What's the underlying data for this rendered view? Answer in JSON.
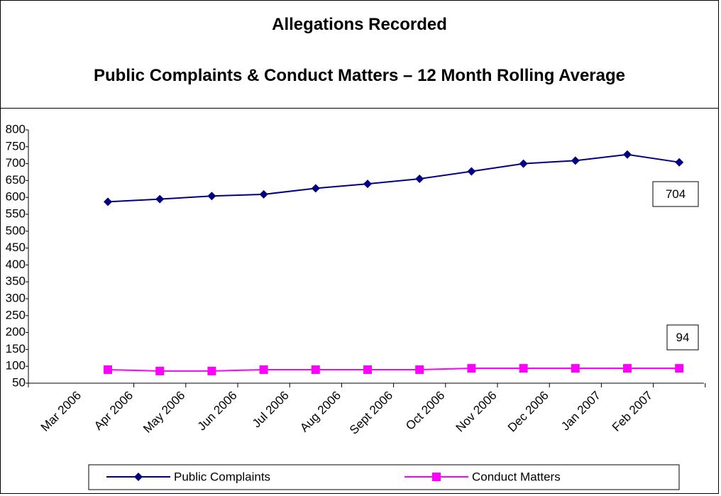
{
  "chart_data": {
    "type": "line",
    "title": "Allegations Recorded",
    "subtitle": "Public Complaints & Conduct Matters – 12 Month Rolling Average",
    "categories": [
      "Mar 2006",
      "Apr 2006",
      "May 2006",
      "Jun 2006",
      "Jul 2006",
      "Aug 2006",
      "Sept 2006",
      "Oct 2006",
      "Nov 2006",
      "Dec 2006",
      "Jan 2007",
      "Feb 2007"
    ],
    "series": [
      {
        "name": "Public Complaints",
        "color": "#000080",
        "marker": "diamond",
        "values": [
          587,
          595,
          604,
          609,
          627,
          640,
          655,
          677,
          700,
          709,
          727,
          704
        ]
      },
      {
        "name": "Conduct Matters",
        "color": "#ff00ff",
        "marker": "square",
        "values": [
          90,
          86,
          86,
          90,
          90,
          90,
          90,
          94,
          94,
          94,
          94,
          94
        ]
      }
    ],
    "ylim": [
      50,
      800
    ],
    "yticks": [
      50,
      100,
      150,
      200,
      250,
      300,
      350,
      400,
      450,
      500,
      550,
      600,
      650,
      700,
      750,
      800
    ],
    "legend": "bottom"
  }
}
